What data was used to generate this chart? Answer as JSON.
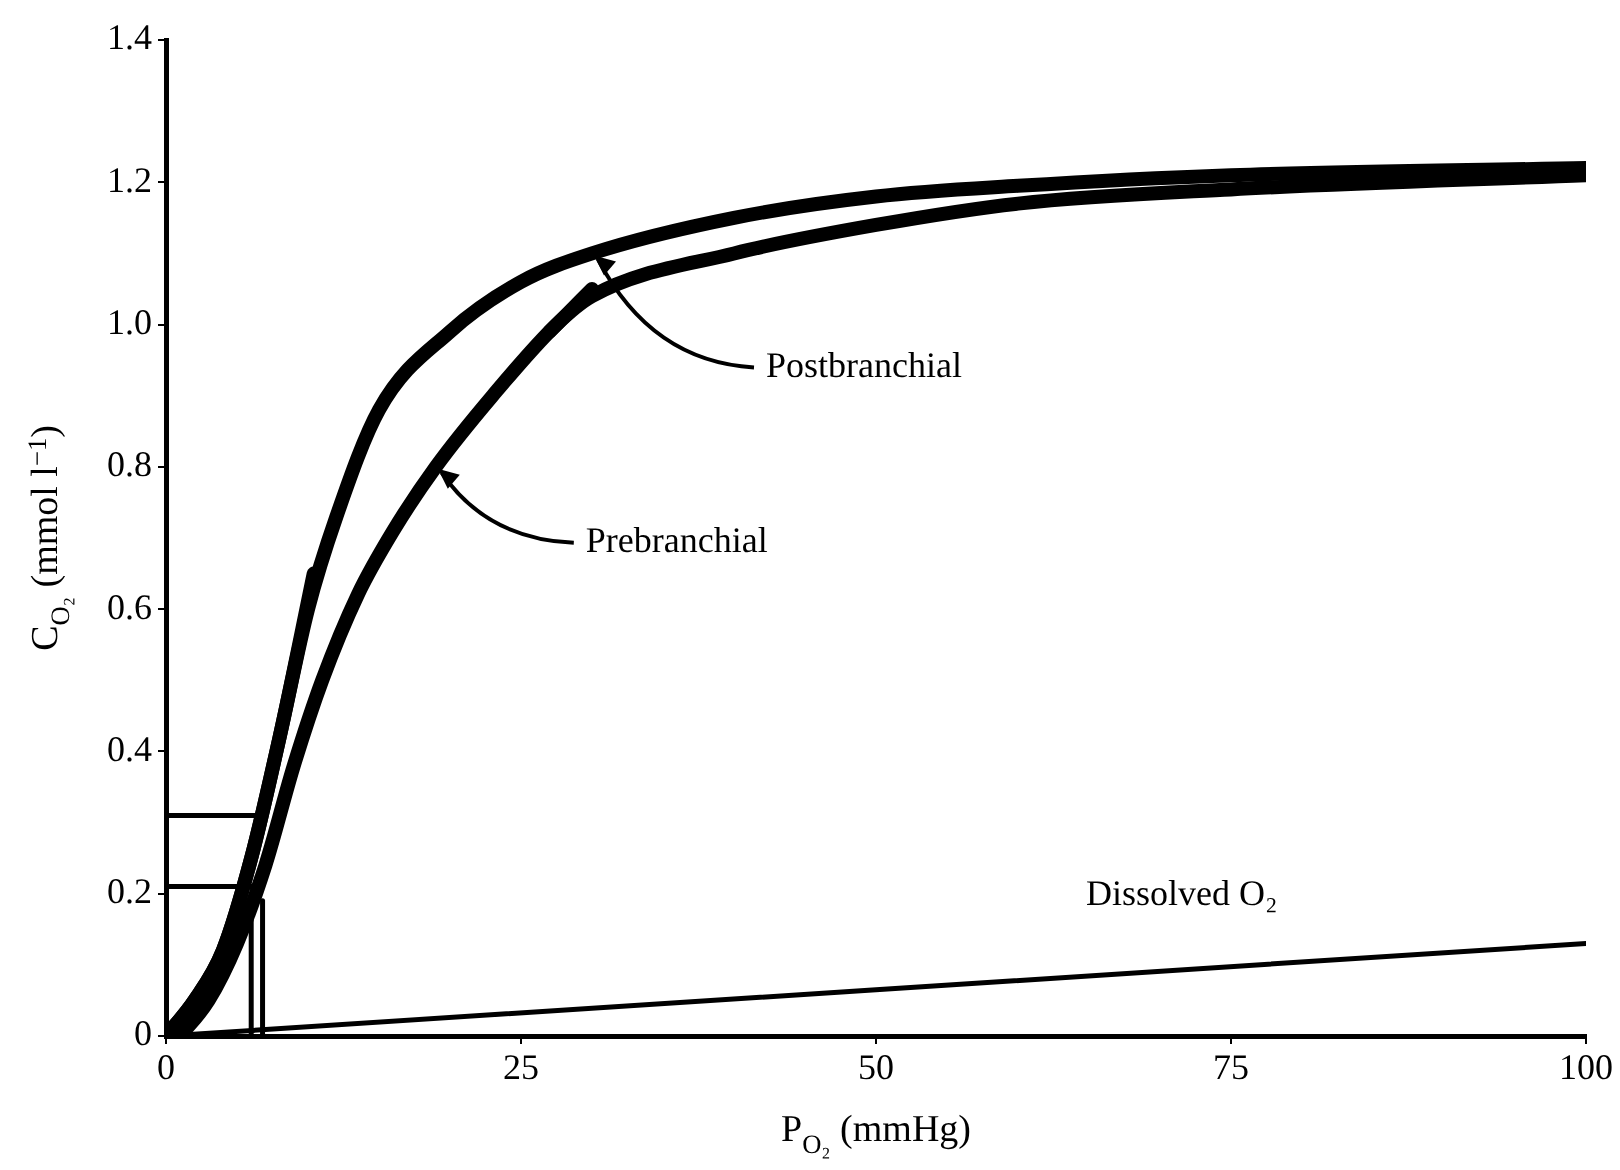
{
  "chart_data": {
    "type": "line",
    "xlabel": "P$_{O₂}$ (mmHg)",
    "ylabel": "C$_{O₂}$ (mmol l$^{−1}$)",
    "xlim": [
      0,
      100
    ],
    "xticks": [
      0,
      25,
      50,
      75,
      100
    ],
    "ylim": [
      0,
      1.4
    ],
    "yticks": [
      0,
      0.2,
      0.4,
      0.6,
      0.8,
      {
        "value": 1.0,
        "label": "1.0"
      },
      1.2,
      1.4
    ],
    "annotations": [
      {
        "text": "Postbranchial",
        "x": 30,
        "y": 1.1
      },
      {
        "text": "Prebranchial",
        "x": 19,
        "y": 0.8
      }
    ],
    "grid": false,
    "legend": false,
    "marker": "none",
    "line_style": "solid",
    "series": [
      {
        "color": "#000000",
        "x": [
          0,
          2,
          4,
          6,
          8,
          10,
          12,
          15,
          20,
          25,
          30,
          40,
          50,
          60,
          75,
          100
        ],
        "values": [
          0,
          0.05,
          0.12,
          0.25,
          0.42,
          0.6,
          0.73,
          0.88,
          0.99,
          1.06,
          1.1,
          1.15,
          1.18,
          1.195,
          1.21,
          1.22
        ]
      },
      {
        "color": "#000000",
        "x": [
          1,
          3,
          5,
          7,
          9,
          11,
          13.5,
          16,
          19,
          23,
          27.5,
          30,
          40,
          50,
          60,
          75,
          100
        ],
        "values": [
          0,
          0.05,
          0.13,
          0.24,
          0.38,
          0.5,
          0.62,
          0.71,
          0.8,
          0.9,
          1.0,
          1.04,
          1.1,
          1.14,
          1.17,
          1.19,
          1.21
        ]
      },
      {
        "name": "Dissolved O₂",
        "color": "#000000",
        "x": [
          0,
          100
        ],
        "values": [
          0,
          0.13
        ]
      },
      {
        "color": "#000000",
        "x": [
          0,
          2,
          4,
          6,
          8,
          10.4
        ],
        "values": [
          0,
          0.05,
          0.12,
          0.25,
          0.42,
          0.65
        ]
      },
      {
        "color": "#000000",
        "x": [
          27,
          28.5,
          30
        ],
        "values": [
          0.99,
          1.02,
          1.05
        ]
      },
      {
        "color": "#000000",
        "x": [
          0,
          6.3
        ],
        "values": [
          0.31,
          0.31
        ]
      },
      {
        "color": "#000000",
        "x": [
          0,
          6.3
        ],
        "values": [
          0.21,
          0.21
        ]
      },
      {
        "color": "#000000",
        "x": [
          6,
          6
        ],
        "values": [
          0,
          0.19
        ]
      },
      {
        "color": "#000000",
        "x": [
          6.8,
          6.8
        ],
        "values": [
          0,
          0.19
        ]
      }
    ]
  }
}
